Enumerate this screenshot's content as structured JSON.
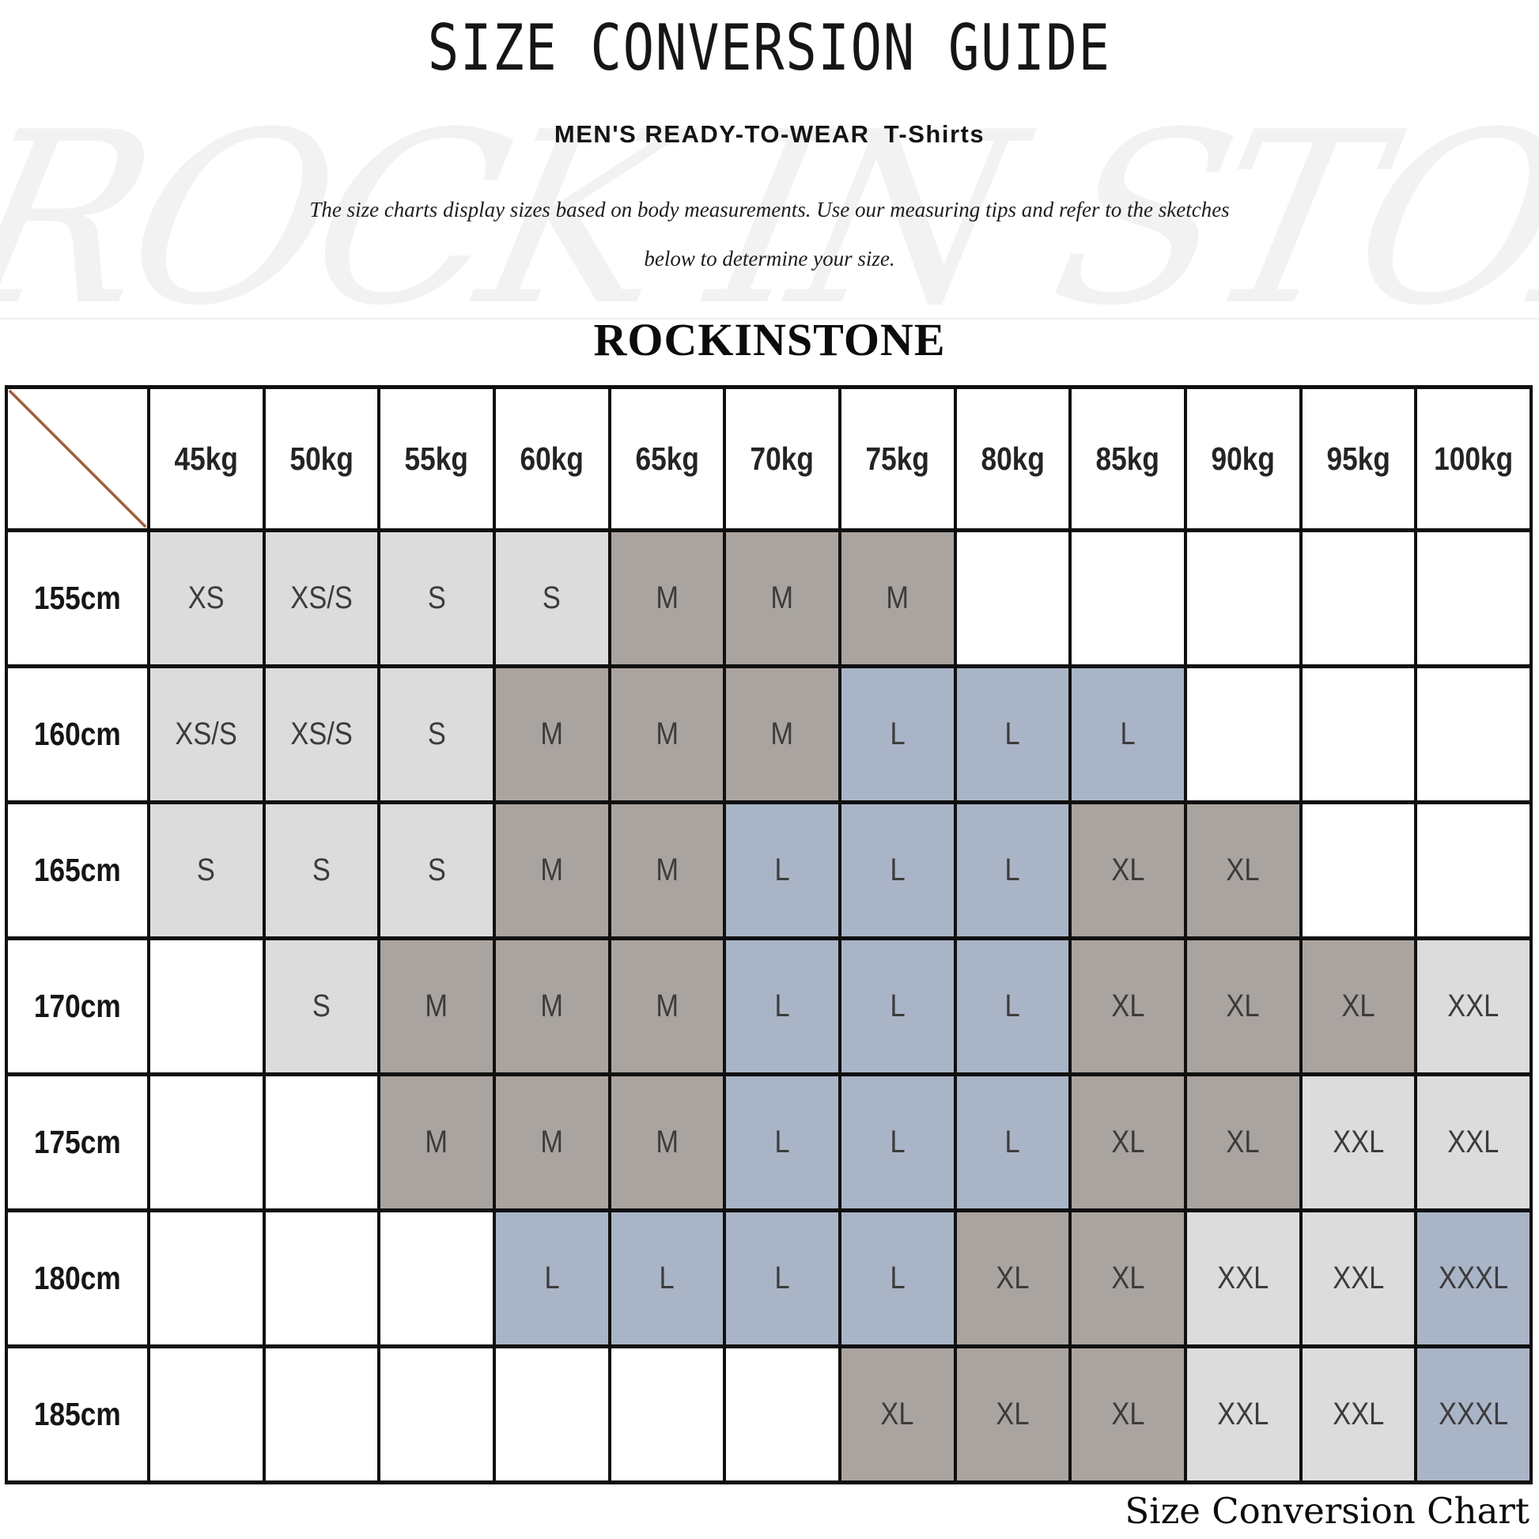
{
  "page": {
    "title": "SIZE CONVERSION GUIDE",
    "subtitle_main": "MEN'S READY-TO-WEAR",
    "subtitle_product": "T-Shirts",
    "description_line1": "The size charts display sizes based on body measurements.  Use our measuring tips and refer to the sketches",
    "description_line2": "below to determine your size.",
    "brand": "ROCKINSTONE",
    "watermark": "ROCK IN STONE",
    "caption": "Size Conversion Chart"
  },
  "colors": {
    "gray": "#dcdcdc",
    "taupe": "#aaa4a0",
    "blue": "#a9b4c7",
    "border": "#101010",
    "diagonal": "#a0603c",
    "white": "#ffffff"
  },
  "chart_data": {
    "type": "table",
    "title": "Size Conversion Chart",
    "column_unit": "body weight",
    "row_unit": "body height",
    "columns": [
      "45kg",
      "50kg",
      "55kg",
      "60kg",
      "65kg",
      "70kg",
      "75kg",
      "80kg",
      "85kg",
      "90kg",
      "95kg",
      "100kg"
    ],
    "rows": [
      {
        "height": "155cm",
        "cells": [
          [
            "XS",
            "gray"
          ],
          [
            "XS/S",
            "gray"
          ],
          [
            "S",
            "gray"
          ],
          [
            "S",
            "gray"
          ],
          [
            "M",
            "taupe"
          ],
          [
            "M",
            "taupe"
          ],
          [
            "M",
            "taupe"
          ],
          [
            "",
            ""
          ],
          [
            "",
            ""
          ],
          [
            "",
            ""
          ],
          [
            "",
            ""
          ],
          [
            "",
            ""
          ]
        ]
      },
      {
        "height": "160cm",
        "cells": [
          [
            "XS/S",
            "gray"
          ],
          [
            "XS/S",
            "gray"
          ],
          [
            "S",
            "gray"
          ],
          [
            "M",
            "taupe"
          ],
          [
            "M",
            "taupe"
          ],
          [
            "M",
            "taupe"
          ],
          [
            "L",
            "blue"
          ],
          [
            "L",
            "blue"
          ],
          [
            "L",
            "blue"
          ],
          [
            "",
            ""
          ],
          [
            "",
            ""
          ],
          [
            "",
            ""
          ]
        ]
      },
      {
        "height": "165cm",
        "cells": [
          [
            "S",
            "gray"
          ],
          [
            "S",
            "gray"
          ],
          [
            "S",
            "gray"
          ],
          [
            "M",
            "taupe"
          ],
          [
            "M",
            "taupe"
          ],
          [
            "L",
            "blue"
          ],
          [
            "L",
            "blue"
          ],
          [
            "L",
            "blue"
          ],
          [
            "XL",
            "taupe"
          ],
          [
            "XL",
            "taupe"
          ],
          [
            "",
            ""
          ],
          [
            "",
            ""
          ]
        ]
      },
      {
        "height": "170cm",
        "cells": [
          [
            "",
            ""
          ],
          [
            "S",
            "gray"
          ],
          [
            "M",
            "taupe"
          ],
          [
            "M",
            "taupe"
          ],
          [
            "M",
            "taupe"
          ],
          [
            "L",
            "blue"
          ],
          [
            "L",
            "blue"
          ],
          [
            "L",
            "blue"
          ],
          [
            "XL",
            "taupe"
          ],
          [
            "XL",
            "taupe"
          ],
          [
            "XL",
            "taupe"
          ],
          [
            "XXL",
            "gray"
          ]
        ]
      },
      {
        "height": "175cm",
        "cells": [
          [
            "",
            ""
          ],
          [
            "",
            ""
          ],
          [
            "M",
            "taupe"
          ],
          [
            "M",
            "taupe"
          ],
          [
            "M",
            "taupe"
          ],
          [
            "L",
            "blue"
          ],
          [
            "L",
            "blue"
          ],
          [
            "L",
            "blue"
          ],
          [
            "XL",
            "taupe"
          ],
          [
            "XL",
            "taupe"
          ],
          [
            "XXL",
            "gray"
          ],
          [
            "XXL",
            "gray"
          ]
        ]
      },
      {
        "height": "180cm",
        "cells": [
          [
            "",
            ""
          ],
          [
            "",
            ""
          ],
          [
            "",
            ""
          ],
          [
            "L",
            "blue"
          ],
          [
            "L",
            "blue"
          ],
          [
            "L",
            "blue"
          ],
          [
            "L",
            "blue"
          ],
          [
            "XL",
            "taupe"
          ],
          [
            "XL",
            "taupe"
          ],
          [
            "XXL",
            "gray"
          ],
          [
            "XXL",
            "gray"
          ],
          [
            "XXXL",
            "blue"
          ]
        ]
      },
      {
        "height": "185cm",
        "cells": [
          [
            "",
            ""
          ],
          [
            "",
            ""
          ],
          [
            "",
            ""
          ],
          [
            "",
            ""
          ],
          [
            "",
            ""
          ],
          [
            "",
            ""
          ],
          [
            "XL",
            "taupe"
          ],
          [
            "XL",
            "taupe"
          ],
          [
            "XL",
            "taupe"
          ],
          [
            "XXL",
            "gray"
          ],
          [
            "XXL",
            "gray"
          ],
          [
            "XXXL",
            "blue"
          ]
        ]
      }
    ]
  }
}
